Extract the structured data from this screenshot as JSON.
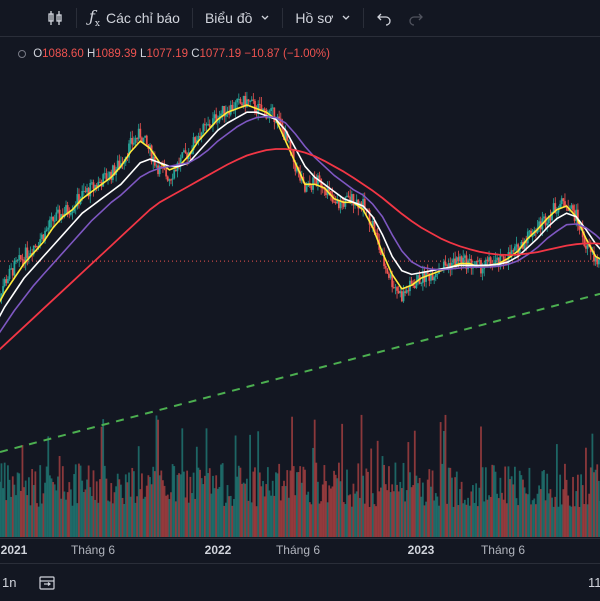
{
  "toolbar": {
    "indicators_label": "Các chỉ báo",
    "chart_label": "Biểu đồ",
    "profile_label": "Hồ sơ"
  },
  "ohlc": {
    "o_key": "O",
    "o_val": "1088.60",
    "h_key": "H",
    "h_val": "1089.39",
    "l_key": "L",
    "l_val": "1077.19",
    "c_key": "C",
    "c_val": "1077.19",
    "change": "−10.87 (−1.00%)"
  },
  "colors": {
    "background": "#131722",
    "up": "#26a69a",
    "down": "#ef5350",
    "ma_fast": "#ffeb3b",
    "ma_mid": "#ffffff",
    "ma_slow": "#7e57c2",
    "ma_long": "#f23645",
    "trendline": "#4caf50"
  },
  "xaxis": {
    "labels": [
      {
        "text": "2021",
        "strong": true
      },
      {
        "text": "Tháng 6",
        "strong": false
      },
      {
        "text": "2022",
        "strong": true
      },
      {
        "text": "Tháng 6",
        "strong": false
      },
      {
        "text": "2023",
        "strong": true
      },
      {
        "text": "Tháng 6",
        "strong": false
      }
    ]
  },
  "bottombar": {
    "range_partial": "1n",
    "right_partial": "11"
  },
  "chart_data": {
    "type": "candlestick",
    "series": [
      {
        "name": "close",
        "values": [
          960,
          1020,
          1060,
          1090,
          1120,
          1150,
          1190,
          1210,
          1230,
          1260,
          1280,
          1300,
          1320,
          1350,
          1400,
          1430,
          1380,
          1330,
          1310,
          1350,
          1380,
          1430,
          1450,
          1480,
          1500,
          1510,
          1520,
          1500,
          1490,
          1480,
          1420,
          1340,
          1270,
          1300,
          1290,
          1230,
          1240,
          1250,
          1230,
          1180,
          1080,
          1020,
          980,
          1010,
          1030,
          1040,
          1060,
          1070,
          1080,
          1070,
          1060,
          1070,
          1070,
          1090,
          1110,
          1150,
          1170,
          1200,
          1230,
          1240,
          1200,
          1120,
          1080,
          1070,
          1077
        ]
      },
      {
        "name": "ma_fast",
        "values": [
          940,
          990,
          1030,
          1070,
          1100,
          1130,
          1170,
          1200,
          1220,
          1250,
          1270,
          1290,
          1310,
          1340,
          1380,
          1410,
          1390,
          1350,
          1330,
          1340,
          1370,
          1410,
          1440,
          1470,
          1490,
          1500,
          1510,
          1500,
          1490,
          1470,
          1410,
          1350,
          1290,
          1290,
          1280,
          1250,
          1240,
          1240,
          1220,
          1170,
          1100,
          1040,
          1000,
          1010,
          1030,
          1040,
          1050,
          1060,
          1070,
          1070,
          1060,
          1065,
          1070,
          1085,
          1105,
          1140,
          1165,
          1195,
          1220,
          1230,
          1200,
          1140,
          1090,
          1075,
          1077
        ]
      },
      {
        "name": "ma_mid",
        "values": [
          900,
          950,
          990,
          1030,
          1060,
          1090,
          1120,
          1150,
          1180,
          1210,
          1230,
          1250,
          1270,
          1290,
          1320,
          1350,
          1360,
          1350,
          1340,
          1340,
          1350,
          1380,
          1410,
          1440,
          1460,
          1475,
          1490,
          1490,
          1480,
          1470,
          1440,
          1390,
          1340,
          1310,
          1290,
          1270,
          1250,
          1240,
          1230,
          1200,
          1150,
          1090,
          1050,
          1040,
          1045,
          1050,
          1055,
          1060,
          1065,
          1065,
          1065,
          1066,
          1068,
          1075,
          1090,
          1115,
          1140,
          1170,
          1195,
          1210,
          1200,
          1165,
          1125,
          1095,
          1085
        ]
      },
      {
        "name": "ma_slow",
        "values": [
          860,
          900,
          940,
          975,
          1010,
          1040,
          1070,
          1100,
          1130,
          1160,
          1190,
          1215,
          1240,
          1260,
          1285,
          1310,
          1325,
          1335,
          1340,
          1345,
          1350,
          1365,
          1385,
          1410,
          1430,
          1450,
          1465,
          1475,
          1478,
          1475,
          1460,
          1430,
          1395,
          1365,
          1340,
          1315,
          1295,
          1275,
          1260,
          1235,
          1200,
          1150,
          1105,
          1075,
          1060,
          1055,
          1053,
          1055,
          1058,
          1060,
          1060,
          1061,
          1063,
          1068,
          1078,
          1095,
          1115,
          1140,
          1160,
          1178,
          1180,
          1170,
          1150,
          1125,
          1110
        ]
      },
      {
        "name": "ma_long",
        "values": [
          820,
          845,
          870,
          895,
          920,
          945,
          970,
          995,
          1020,
          1045,
          1070,
          1095,
          1120,
          1145,
          1170,
          1195,
          1220,
          1240,
          1255,
          1270,
          1285,
          1300,
          1315,
          1330,
          1345,
          1358,
          1370,
          1378,
          1385,
          1388,
          1388,
          1385,
          1378,
          1368,
          1355,
          1340,
          1325,
          1308,
          1290,
          1272,
          1252,
          1230,
          1208,
          1188,
          1170,
          1155,
          1140,
          1128,
          1118,
          1110,
          1103,
          1098,
          1095,
          1094,
          1095,
          1098,
          1102,
          1108,
          1114,
          1120,
          1124,
          1126,
          1126,
          1124,
          1121
        ]
      }
    ],
    "trendline": {
      "from": 700,
      "to": 1000
    },
    "xlabel": "",
    "ylabel": ""
  }
}
